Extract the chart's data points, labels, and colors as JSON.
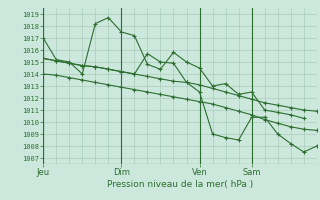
{
  "bg_color": "#cce8dc",
  "grid_color": "#aaccbb",
  "line_color": "#2d6e30",
  "title": "Pression niveau de la mer( hPa )",
  "ylabel_ticks": [
    1007,
    1008,
    1009,
    1010,
    1011,
    1012,
    1013,
    1014,
    1015,
    1016,
    1017,
    1018,
    1019
  ],
  "ylim": [
    1006.5,
    1019.5
  ],
  "day_labels": [
    "Jeu",
    "Dim",
    "Ven",
    "Sam"
  ],
  "day_positions": [
    0,
    36,
    72,
    96
  ],
  "xlim": [
    0,
    126
  ],
  "series1_x": [
    0,
    6,
    12,
    18,
    24,
    30,
    36,
    42,
    48,
    54,
    60,
    66,
    72,
    78,
    84,
    90,
    96,
    102,
    108,
    114,
    120
  ],
  "series1_y": [
    1017.0,
    1015.2,
    1015.0,
    1014.0,
    1018.2,
    1018.7,
    1017.5,
    1017.2,
    1014.8,
    1014.4,
    1015.8,
    1015.0,
    1014.5,
    1013.0,
    1013.2,
    1012.3,
    1012.5,
    1011.0,
    1010.8,
    1010.6,
    1010.3
  ],
  "series2_x": [
    0,
    6,
    12,
    18,
    24,
    30,
    36,
    42,
    48,
    54,
    60,
    66,
    72,
    78,
    84,
    90,
    96,
    102,
    108,
    114,
    120,
    126
  ],
  "series2_y": [
    1015.3,
    1015.1,
    1014.9,
    1014.7,
    1014.6,
    1014.4,
    1014.2,
    1014.0,
    1013.8,
    1013.6,
    1013.4,
    1013.3,
    1013.1,
    1012.8,
    1012.5,
    1012.2,
    1011.9,
    1011.6,
    1011.4,
    1011.2,
    1011.0,
    1010.9
  ],
  "series3_x": [
    0,
    6,
    12,
    18,
    24,
    30,
    36,
    42,
    48,
    54,
    60,
    66,
    72,
    78,
    84,
    90,
    96,
    102,
    108,
    114,
    120,
    126
  ],
  "series3_y": [
    1014.0,
    1013.9,
    1013.7,
    1013.5,
    1013.3,
    1013.1,
    1012.9,
    1012.7,
    1012.5,
    1012.3,
    1012.1,
    1011.9,
    1011.7,
    1011.5,
    1011.2,
    1010.9,
    1010.6,
    1010.2,
    1009.9,
    1009.6,
    1009.4,
    1009.3
  ],
  "series4_x": [
    0,
    6,
    12,
    18,
    24,
    30,
    36,
    42,
    48,
    54,
    60,
    66,
    72,
    78,
    84,
    90,
    96,
    102,
    108,
    114,
    120,
    126
  ],
  "series4_y": [
    1015.3,
    1015.1,
    1014.9,
    1014.7,
    1014.6,
    1014.4,
    1014.2,
    1014.0,
    1015.7,
    1015.0,
    1014.9,
    1013.3,
    1012.5,
    1009.0,
    1008.7,
    1008.5,
    1010.4,
    1010.4,
    1009.0,
    1008.2,
    1007.5,
    1008.0
  ]
}
